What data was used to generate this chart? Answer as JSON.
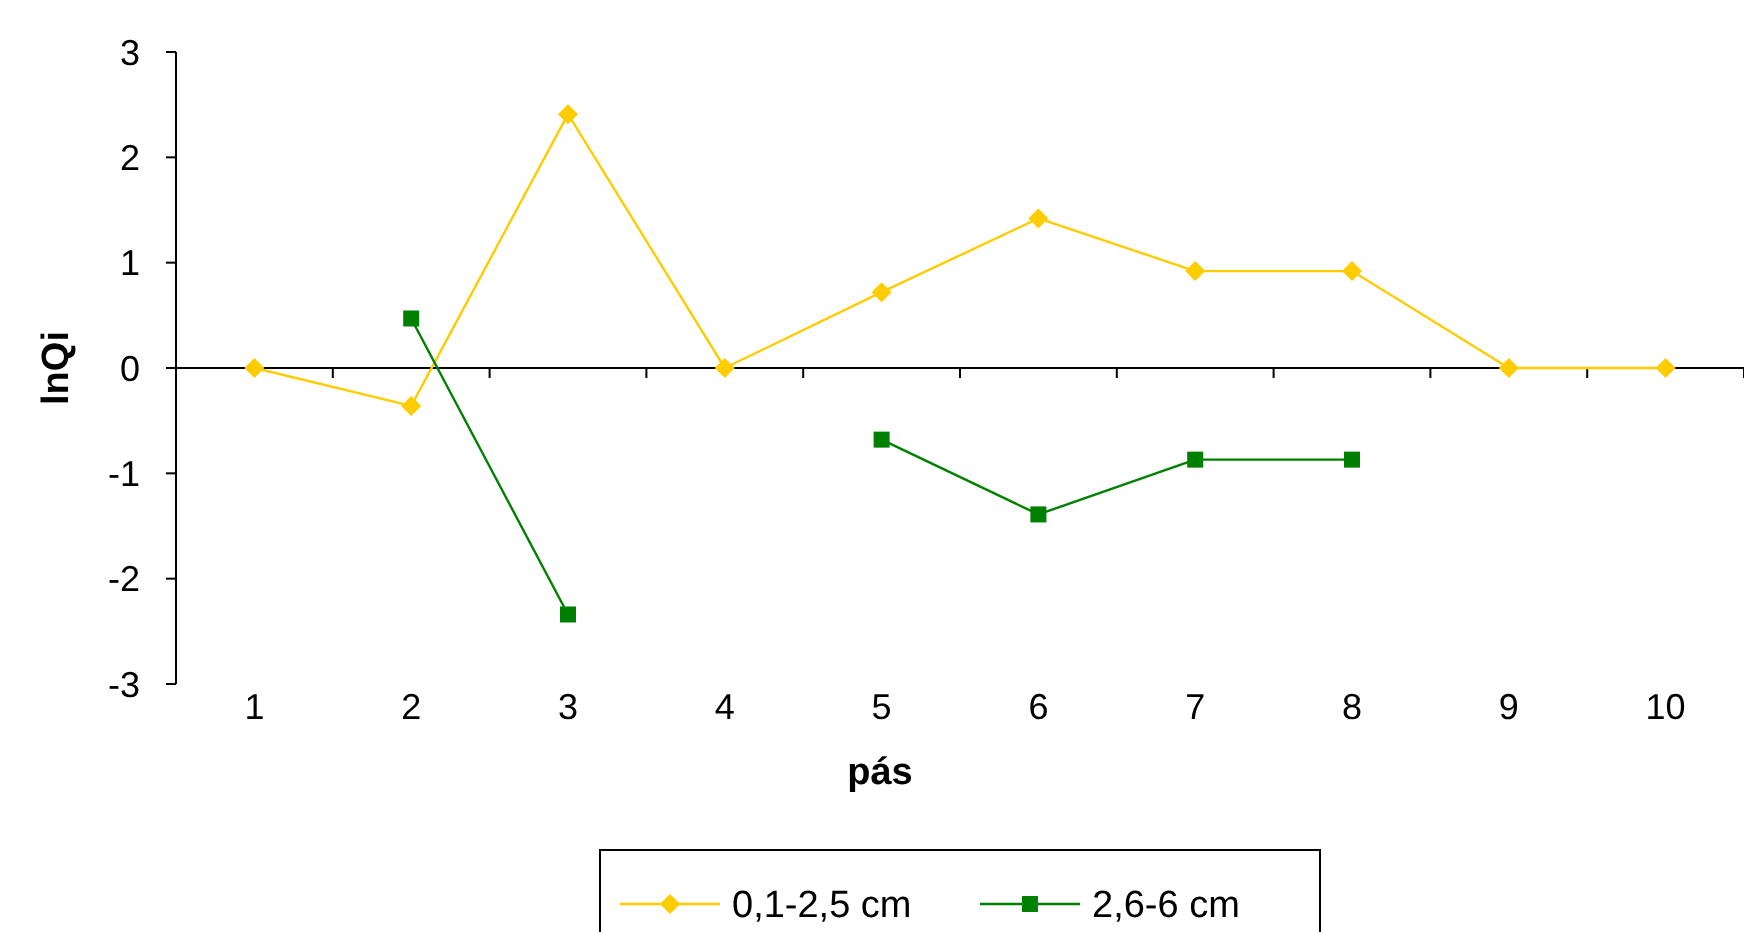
{
  "chart_data": {
    "type": "line",
    "xlabel": "pás",
    "ylabel": "lnQi",
    "categories": [
      "1",
      "2",
      "3",
      "4",
      "5",
      "6",
      "7",
      "8",
      "9",
      "10"
    ],
    "ylim": [
      -3,
      3
    ],
    "yticks": [
      -3,
      -2,
      -1,
      0,
      1,
      2,
      3
    ],
    "legend": "bottom",
    "series": [
      {
        "name": "0,1-2,5 cm",
        "color": "#ffcc00",
        "marker": "diamond",
        "values": [
          0,
          -0.36,
          2.41,
          0,
          0.72,
          1.42,
          0.92,
          0.92,
          0,
          0
        ]
      },
      {
        "name": "2,6-6 cm",
        "color": "#008000",
        "marker": "square",
        "values": [
          null,
          0.47,
          -2.34,
          null,
          -0.68,
          -1.39,
          -0.87,
          -0.87,
          null,
          null
        ]
      }
    ]
  }
}
